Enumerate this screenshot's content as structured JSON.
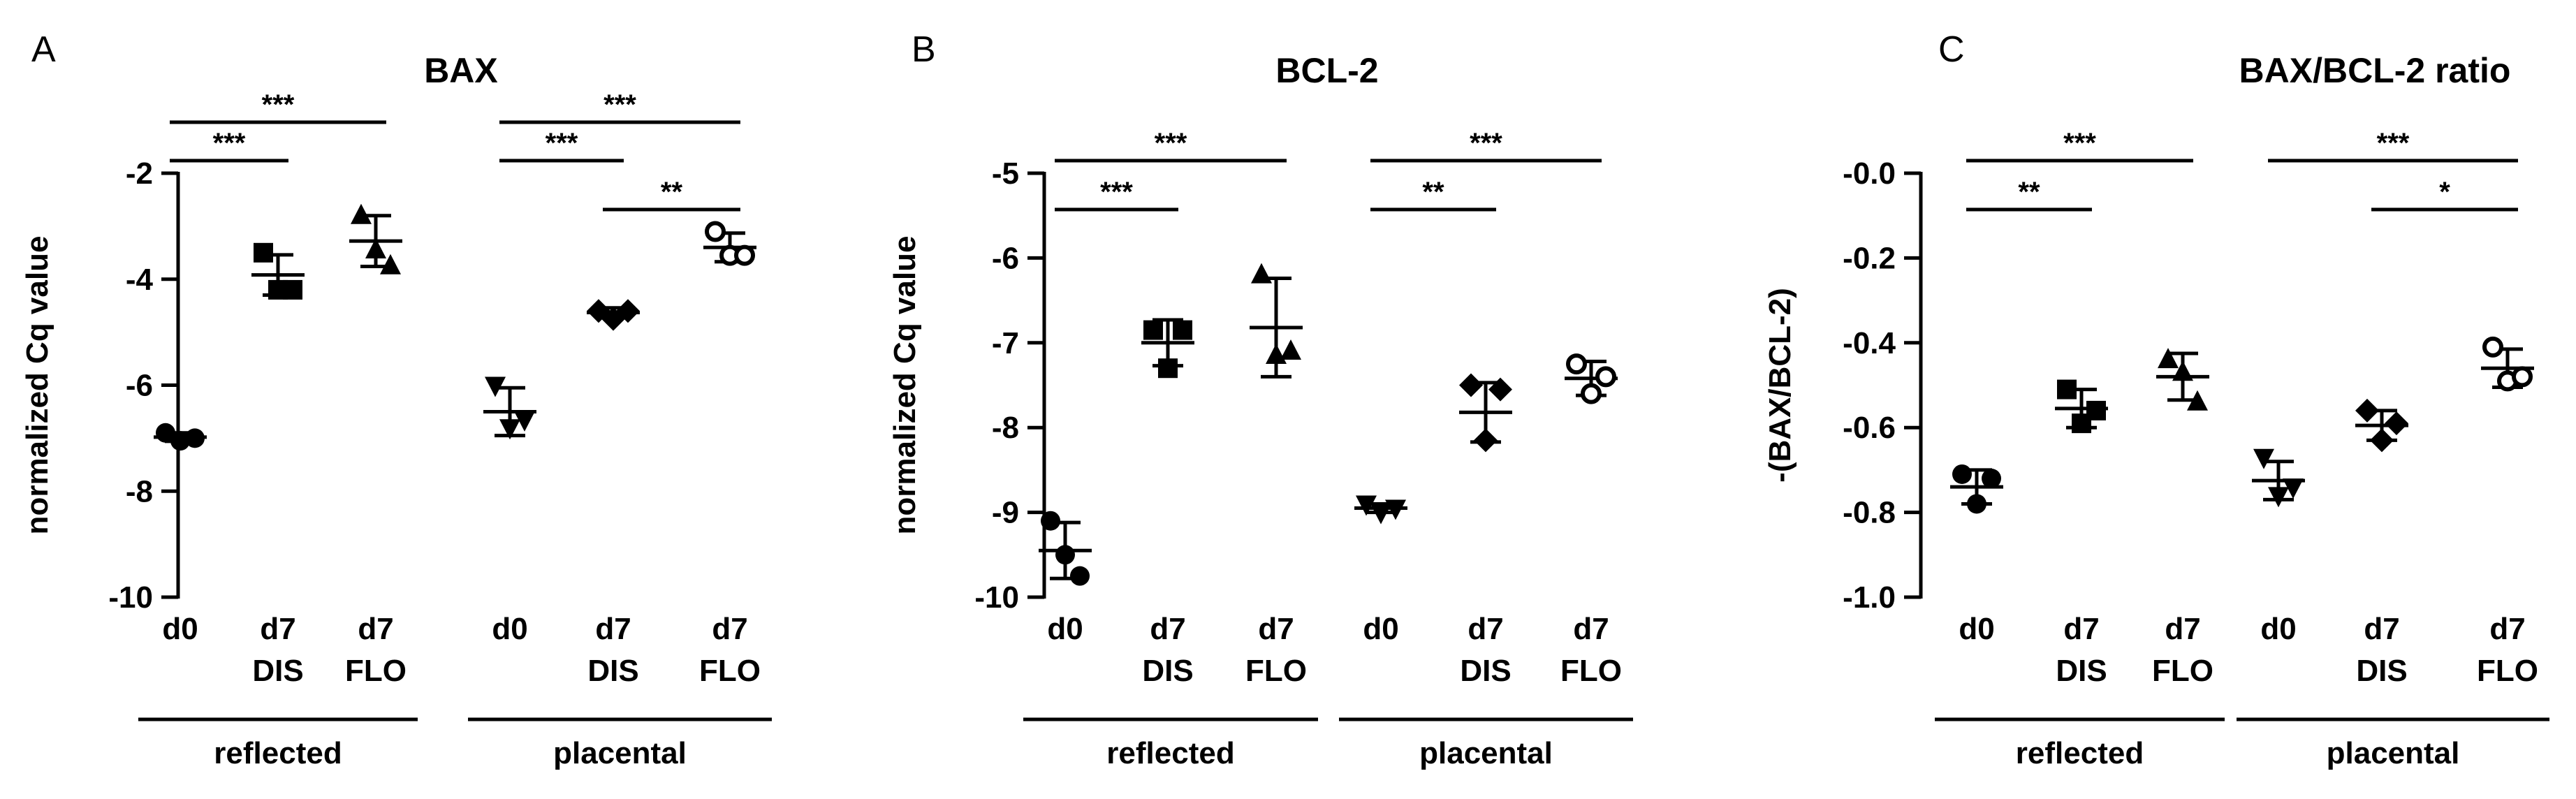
{
  "chart_data": [
    {
      "type": "scatter",
      "panel_letter": "A",
      "title": "BAX",
      "ylabel": "normalized Cq value",
      "ylim": [
        -10,
        -2
      ],
      "yticks": [
        -10,
        -8,
        -6,
        -4,
        -2
      ],
      "ytick_labels": [
        "-10",
        "-8",
        "-6",
        "-4",
        "-2"
      ],
      "categories": [
        {
          "line1": "d0",
          "line2": "",
          "marker": "circle"
        },
        {
          "line1": "d7",
          "line2": "DIS",
          "marker": "square"
        },
        {
          "line1": "d7",
          "line2": "FLO",
          "marker": "triangle-up"
        },
        {
          "line1": "d0",
          "line2": "",
          "marker": "triangle-down"
        },
        {
          "line1": "d7",
          "line2": "DIS",
          "marker": "diamond"
        },
        {
          "line1": "d7",
          "line2": "FLO",
          "marker": "circle-open"
        }
      ],
      "groups": [
        {
          "label": "reflected",
          "from": 0,
          "to": 2
        },
        {
          "label": "placental",
          "from": 3,
          "to": 5
        }
      ],
      "points": [
        [
          -6.9,
          -7.05,
          -7.0
        ],
        [
          -3.5,
          -4.2,
          -4.2
        ],
        [
          -2.8,
          -3.45,
          -3.75
        ],
        [
          -6.0,
          -6.8,
          -6.65
        ],
        [
          -4.6,
          -4.75,
          -4.6
        ],
        [
          -3.1,
          -3.55,
          -3.55
        ]
      ],
      "mean": [
        -6.98,
        -3.92,
        -3.28,
        -6.5,
        -4.63,
        -3.4
      ],
      "sd": [
        0.08,
        0.38,
        0.48,
        0.45,
        0.09,
        0.27
      ],
      "significance": [
        {
          "from": 0,
          "to": 1,
          "level": 1,
          "label": "***"
        },
        {
          "from": 0,
          "to": 2,
          "level": 2,
          "label": "***"
        },
        {
          "from": 4,
          "to": 5,
          "level": 0,
          "label": "**"
        },
        {
          "from": 3,
          "to": 4,
          "level": 1,
          "label": "***"
        },
        {
          "from": 3,
          "to": 5,
          "level": 2,
          "label": "***"
        }
      ]
    },
    {
      "type": "scatter",
      "panel_letter": "B",
      "title": "BCL-2",
      "ylabel": "normalized Cq value",
      "ylim": [
        -10,
        -5
      ],
      "yticks": [
        -10,
        -9,
        -8,
        -7,
        -6,
        -5
      ],
      "ytick_labels": [
        "-10",
        "-9",
        "-8",
        "-7",
        "-6",
        "-5"
      ],
      "categories": [
        {
          "line1": "d0",
          "line2": "",
          "marker": "circle"
        },
        {
          "line1": "d7",
          "line2": "DIS",
          "marker": "square"
        },
        {
          "line1": "d7",
          "line2": "FLO",
          "marker": "triangle-up"
        },
        {
          "line1": "d0",
          "line2": "",
          "marker": "triangle-down"
        },
        {
          "line1": "d7",
          "line2": "DIS",
          "marker": "diamond"
        },
        {
          "line1": "d7",
          "line2": "FLO",
          "marker": "circle-open"
        }
      ],
      "groups": [
        {
          "label": "reflected",
          "from": 0,
          "to": 2
        },
        {
          "label": "placental",
          "from": 3,
          "to": 5
        }
      ],
      "points": [
        [
          -9.1,
          -9.5,
          -9.75
        ],
        [
          -6.85,
          -7.3,
          -6.85
        ],
        [
          -6.2,
          -7.15,
          -7.1
        ],
        [
          -8.9,
          -9.0,
          -8.95
        ],
        [
          -7.5,
          -8.15,
          -7.55
        ],
        [
          -7.25,
          -7.6,
          -7.4
        ]
      ],
      "mean": [
        -9.45,
        -7.0,
        -6.82,
        -8.95,
        -7.82,
        -7.42
      ],
      "sd": [
        0.33,
        0.27,
        0.58,
        0.05,
        0.35,
        0.2
      ],
      "significance": [
        {
          "from": 0,
          "to": 1,
          "level": 0,
          "label": "***"
        },
        {
          "from": 0,
          "to": 2,
          "level": 1,
          "label": "***"
        },
        {
          "from": 3,
          "to": 4,
          "level": 0,
          "label": "**"
        },
        {
          "from": 3,
          "to": 5,
          "level": 1,
          "label": "***"
        }
      ]
    },
    {
      "type": "scatter",
      "panel_letter": "C",
      "title": "BAX/BCL-2 ratio",
      "ylabel": "-(BAX/BCL-2)",
      "ylim": [
        -1.0,
        0.0
      ],
      "yticks": [
        -1.0,
        -0.8,
        -0.6,
        -0.4,
        -0.2,
        0.0
      ],
      "ytick_labels": [
        "-1.0",
        "-0.8",
        "-0.6",
        "-0.4",
        "-0.2",
        "-0.0"
      ],
      "categories": [
        {
          "line1": "d0",
          "line2": "",
          "marker": "circle"
        },
        {
          "line1": "d7",
          "line2": "DIS",
          "marker": "square"
        },
        {
          "line1": "d7",
          "line2": "FLO",
          "marker": "triangle-up"
        },
        {
          "line1": "d0",
          "line2": "",
          "marker": "triangle-down"
        },
        {
          "line1": "d7",
          "line2": "DIS",
          "marker": "diamond"
        },
        {
          "line1": "d7",
          "line2": "FLO",
          "marker": "circle-open"
        }
      ],
      "groups": [
        {
          "label": "reflected",
          "from": 0,
          "to": 2
        },
        {
          "label": "placental",
          "from": 3,
          "to": 5
        }
      ],
      "points": [
        [
          -0.71,
          -0.78,
          -0.72
        ],
        [
          -0.51,
          -0.59,
          -0.56
        ],
        [
          -0.44,
          -0.47,
          -0.54
        ],
        [
          -0.67,
          -0.76,
          -0.74
        ],
        [
          -0.56,
          -0.63,
          -0.59
        ],
        [
          -0.41,
          -0.49,
          -0.48
        ]
      ],
      "mean": [
        -0.74,
        -0.555,
        -0.48,
        -0.725,
        -0.595,
        -0.46
      ],
      "sd": [
        0.04,
        0.045,
        0.055,
        0.045,
        0.035,
        0.045
      ],
      "significance": [
        {
          "from": 0,
          "to": 1,
          "level": 0,
          "label": "**"
        },
        {
          "from": 0,
          "to": 2,
          "level": 1,
          "label": "***"
        },
        {
          "from": 4,
          "to": 5,
          "level": 0,
          "label": "*"
        },
        {
          "from": 3,
          "to": 5,
          "level": 1,
          "label": "***"
        }
      ]
    }
  ]
}
